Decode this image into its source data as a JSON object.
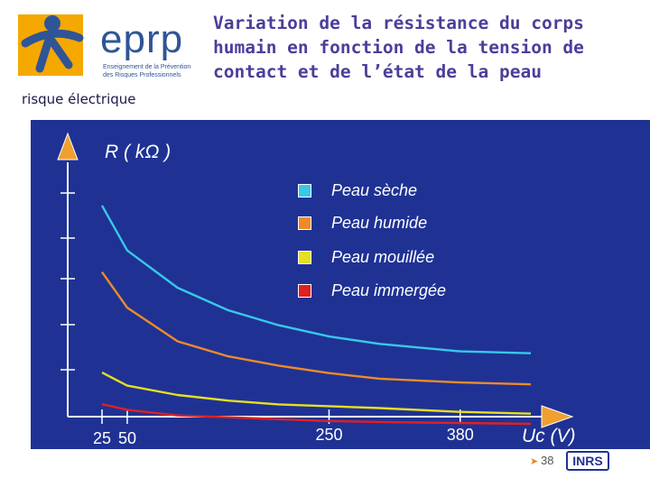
{
  "header": {
    "brand": "eprp",
    "brand_sub": "Enseignement de la Prévention des Risques Professionnels",
    "risk_label": "risque électrique",
    "title": "Variation de la résistance du corps humain en fonction de la tension de contact et de l’état de la peau"
  },
  "footer": {
    "page_number": "38",
    "publisher_logo": "INRS"
  },
  "colors": {
    "panel": "#1f3294",
    "axis": "#ffffff",
    "arrow": "#f0a030"
  },
  "chart_data": {
    "type": "line",
    "title": "Variation de la résistance du corps humain en fonction de la tension de contact et de l’état de la peau",
    "ylabel": "R ( kΩ )",
    "xlabel": "Uc (V)",
    "x_ticks": [
      "25",
      "50",
      "250",
      "380"
    ],
    "xlim": [
      0,
      500
    ],
    "grid": false,
    "legend_position": "top-center",
    "series": [
      {
        "name": "Peau sèche",
        "color": "#39c8e8",
        "x": [
          25,
          50,
          100,
          150,
          200,
          250,
          300,
          380,
          450
        ],
        "y": [
          10.2,
          7.8,
          5.8,
          4.6,
          3.8,
          3.2,
          2.8,
          2.4,
          2.3
        ]
      },
      {
        "name": "Peau humide",
        "color": "#f08a28",
        "x": [
          25,
          50,
          100,
          150,
          200,
          250,
          300,
          380,
          450
        ],
        "y": [
          7.7,
          5.8,
          4.0,
          3.2,
          2.7,
          2.3,
          2.0,
          1.8,
          1.7
        ]
      },
      {
        "name": "Peau mouillée",
        "color": "#e6e020",
        "x": [
          25,
          50,
          100,
          150,
          200,
          250,
          300,
          380,
          450
        ],
        "y": [
          3.1,
          2.4,
          1.9,
          1.6,
          1.4,
          1.3,
          1.2,
          1.0,
          0.9
        ]
      },
      {
        "name": "Peau immergée",
        "color": "#e02020",
        "x": [
          25,
          50,
          100,
          150,
          200,
          250,
          300,
          380,
          450
        ],
        "y": [
          1.6,
          1.3,
          1.0,
          0.9,
          0.8,
          0.7,
          0.65,
          0.6,
          0.55
        ]
      }
    ]
  }
}
